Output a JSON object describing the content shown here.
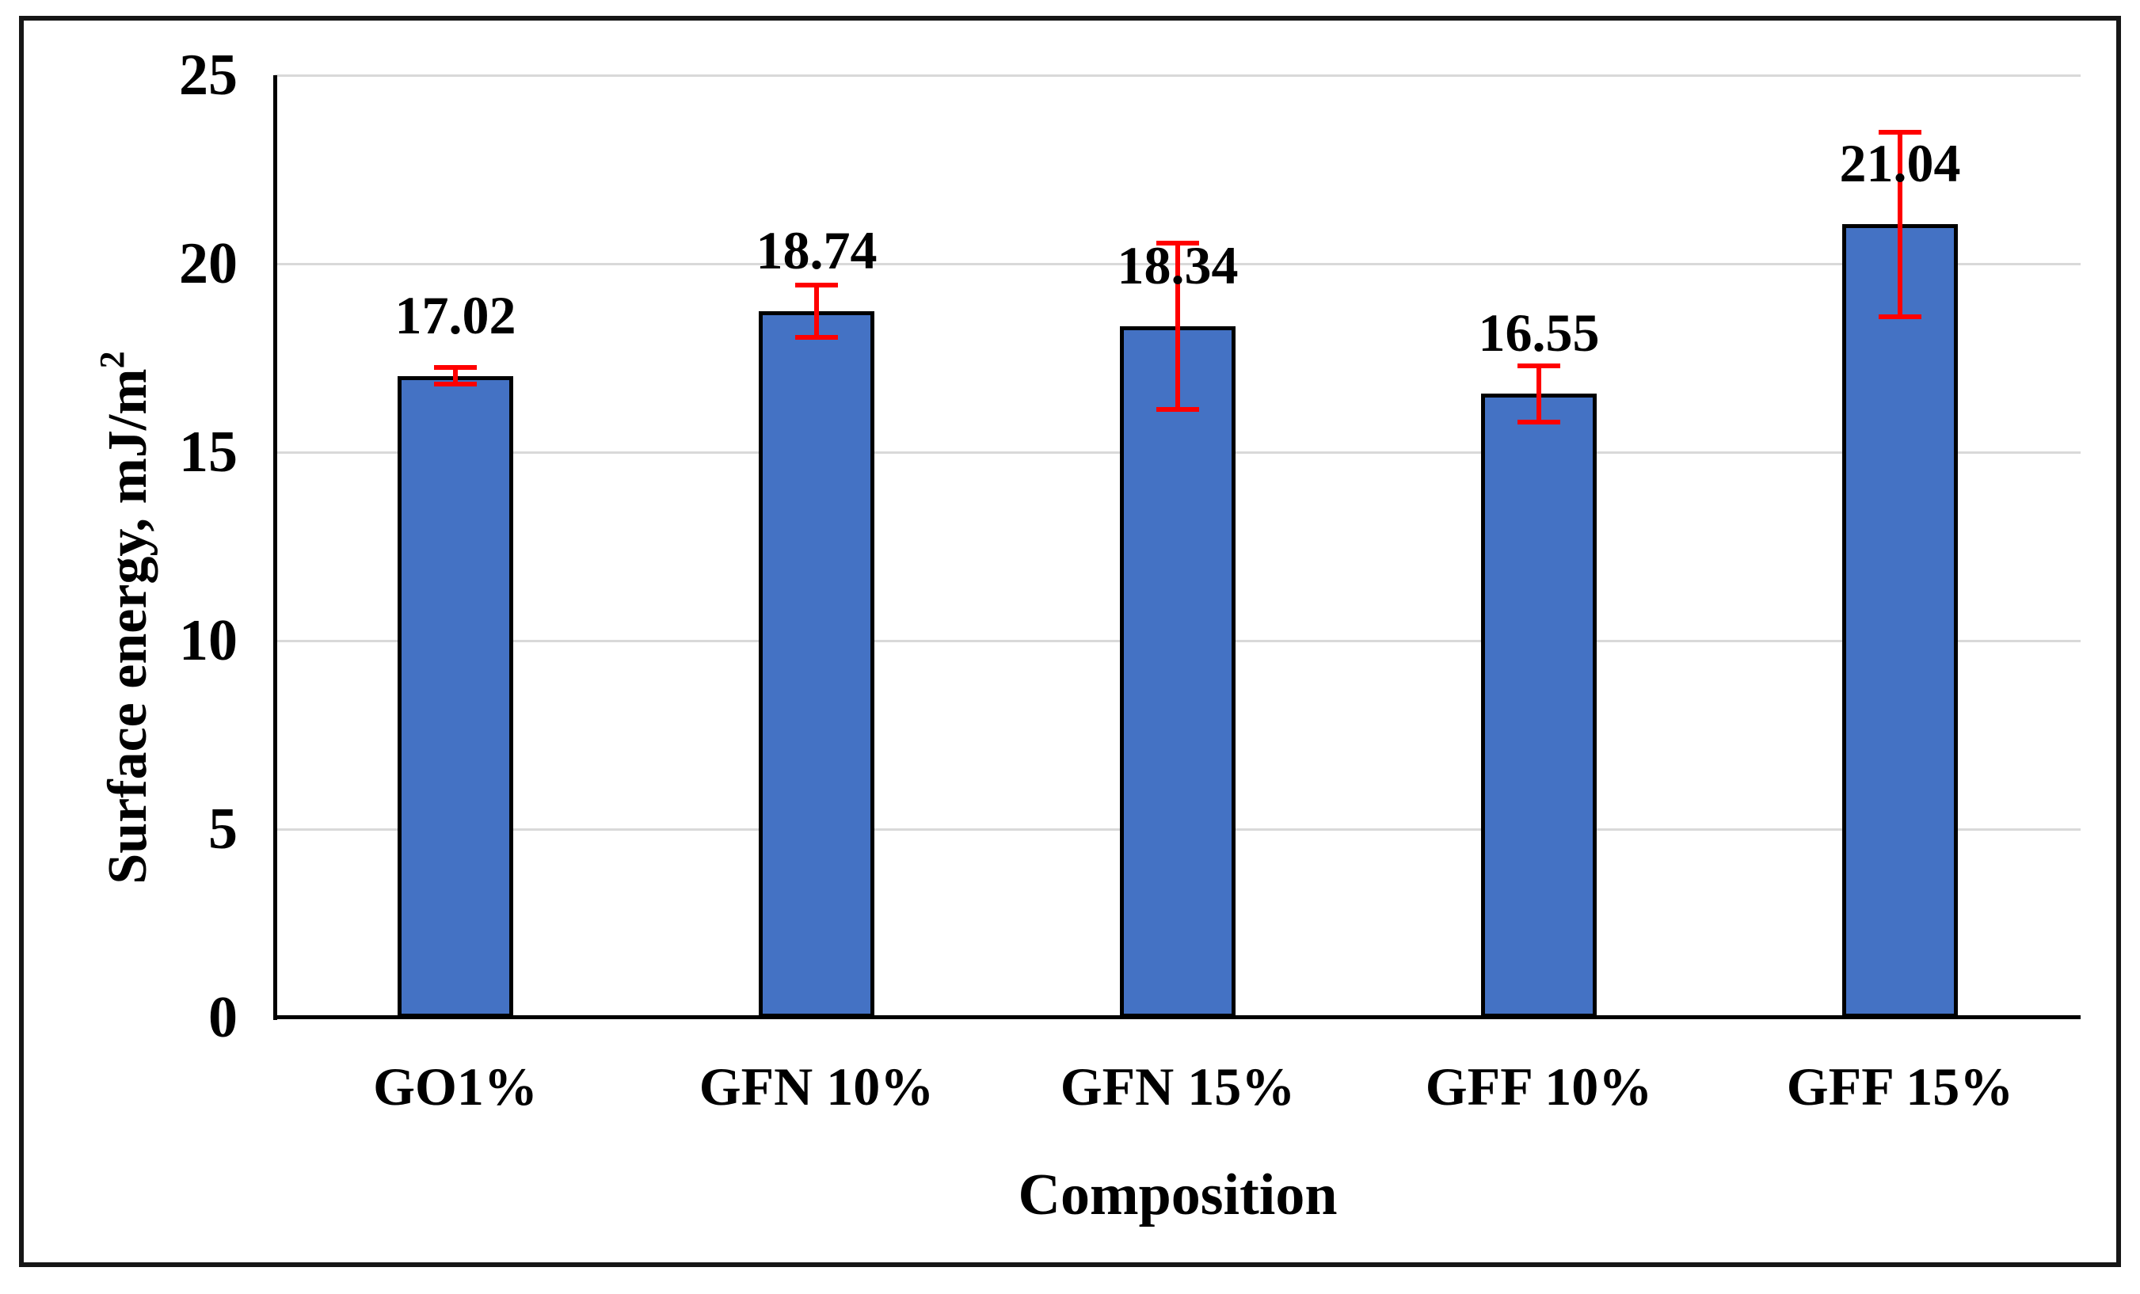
{
  "figure": {
    "background_color": "#ffffff",
    "frame_color": "#161616"
  },
  "chart_data": {
    "type": "bar",
    "title": "",
    "categories": [
      "GO1%",
      "GFN 10%",
      "GFN 15%",
      "GFF 10%",
      "GFF 15%"
    ],
    "values": [
      17.02,
      18.74,
      18.34,
      16.55,
      21.04
    ],
    "value_labels": [
      "17.02",
      "18.74",
      "18.34",
      "16.55",
      "21.04"
    ],
    "error_bars_plus_minus": [
      0.22,
      0.7,
      2.2,
      0.75,
      2.45
    ],
    "xlabel": "Composition",
    "ylabel": "Surface energy, mJ/m",
    "ylabel_superscript": "2",
    "ylim": [
      0,
      25
    ],
    "yticks": [
      "0",
      "5",
      "10",
      "15",
      "20",
      "25"
    ],
    "grid": true,
    "legend_position": "none",
    "colors": {
      "bar_fill": "#4472C4",
      "bar_border": "#000000",
      "error_bar": "#FF0000",
      "gridline": "#D9D9D9",
      "axis_line": "#000000",
      "text": "#000000"
    }
  }
}
